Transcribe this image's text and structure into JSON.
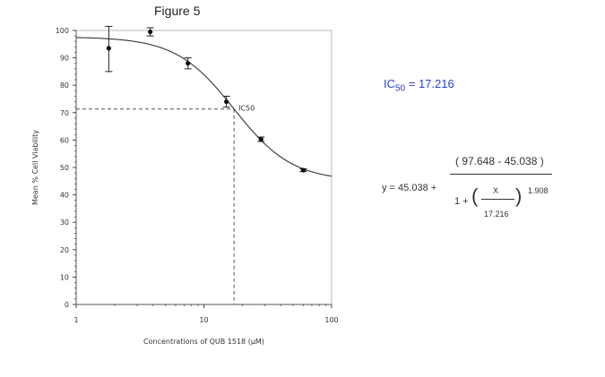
{
  "figure_title": "Figure 5",
  "ic50_label": {
    "prefix": "IC",
    "sub": "50",
    "suffix": " = 17.216"
  },
  "equation": {
    "lhs": "y = 45.038 +",
    "numerator": "( 97.648 - 45.038 )",
    "one_plus": "1 +",
    "paren_left": "(",
    "x_var": "X",
    "ic50_den": "17.216",
    "paren_right": ")",
    "exponent": "1.908"
  },
  "colors": {
    "ic50_text": "#2a3fd6",
    "curve": "#333333",
    "dash": "#555555"
  },
  "chart_data": {
    "type": "scatter",
    "title": "",
    "xlabel": "Concentrations of QUB 1518 (µM)",
    "ylabel": "Mean % Cell Viability",
    "x_scale": "log",
    "xlim": [
      1,
      100
    ],
    "ylim": [
      0,
      100
    ],
    "x_ticks": [
      1,
      10,
      100
    ],
    "x_tick_labels": [
      "1",
      "10",
      "100"
    ],
    "y_ticks": [
      0,
      10,
      20,
      30,
      40,
      50,
      60,
      70,
      80,
      90,
      100
    ],
    "y_tick_labels": [
      "0",
      "10",
      "20",
      "30",
      "40",
      "50",
      "60",
      "70",
      "80",
      "90",
      "100"
    ],
    "points": [
      {
        "x": 1.8,
        "y": 93.5,
        "err": 8.5
      },
      {
        "x": 3.8,
        "y": 99.5,
        "err": 1.5
      },
      {
        "x": 7.5,
        "y": 88,
        "err": 2
      },
      {
        "x": 15,
        "y": 74,
        "err": 2
      },
      {
        "x": 28,
        "y": 60.3,
        "err": 0.8
      },
      {
        "x": 60,
        "y": 49,
        "err": 0.5
      }
    ],
    "fit": {
      "bottom": 45.038,
      "top": 97.648,
      "ic50": 17.216,
      "hill": 1.908
    },
    "ic50_marker": {
      "x": 17.216,
      "y": 71.343,
      "label": "IC50"
    },
    "grid": false
  }
}
